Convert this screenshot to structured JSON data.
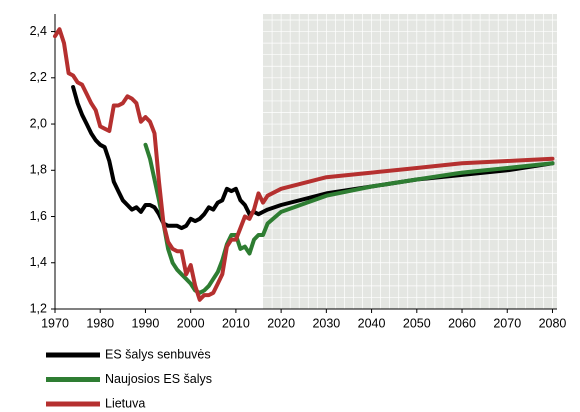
{
  "chart_data": {
    "type": "line",
    "xlim": [
      1970,
      2081
    ],
    "xticks": [
      1970,
      1980,
      1990,
      2000,
      2010,
      2020,
      2030,
      2040,
      2050,
      2060,
      2070,
      2080
    ],
    "ylim": [
      1.2,
      2.45
    ],
    "yticks": [
      {
        "value": 1.2,
        "label": "1,2"
      },
      {
        "value": 1.4,
        "label": "1,4"
      },
      {
        "value": 1.6,
        "label": "1,6"
      },
      {
        "value": 1.8,
        "label": "1,8"
      },
      {
        "value": 2.0,
        "label": "2,0"
      },
      {
        "value": 2.2,
        "label": "2,2"
      },
      {
        "value": 2.4,
        "label": "2,4"
      }
    ],
    "shaded_xlim": [
      2016,
      2081
    ],
    "legend": "bottom-left",
    "series": [
      {
        "name": "ES šalys senbuvės",
        "color": "#000000",
        "x": [
          1974,
          1975,
          1976,
          1977,
          1978,
          1979,
          1980,
          1981,
          1982,
          1983,
          1984,
          1985,
          1986,
          1987,
          1988,
          1989,
          1990,
          1991,
          1992,
          1993,
          1994,
          1995,
          1996,
          1997,
          1998,
          1999,
          2000,
          2001,
          2002,
          2003,
          2004,
          2005,
          2006,
          2007,
          2008,
          2009,
          2010,
          2011,
          2012,
          2013,
          2014,
          2015,
          2016,
          2017,
          2020,
          2030,
          2040,
          2050,
          2060,
          2070,
          2080
        ],
        "values": [
          2.16,
          2.09,
          2.04,
          2.0,
          1.96,
          1.93,
          1.91,
          1.9,
          1.84,
          1.75,
          1.71,
          1.67,
          1.65,
          1.63,
          1.64,
          1.62,
          1.65,
          1.65,
          1.64,
          1.61,
          1.57,
          1.56,
          1.56,
          1.56,
          1.55,
          1.56,
          1.59,
          1.58,
          1.59,
          1.61,
          1.64,
          1.63,
          1.66,
          1.67,
          1.72,
          1.71,
          1.72,
          1.67,
          1.65,
          1.61,
          1.62,
          1.61,
          1.62,
          1.63,
          1.65,
          1.7,
          1.73,
          1.76,
          1.78,
          1.8,
          1.83
        ]
      },
      {
        "name": "Naujosios ES šalys",
        "color": "#2e7d32",
        "x": [
          1990,
          1991,
          1992,
          1993,
          1994,
          1995,
          1996,
          1997,
          1998,
          1999,
          2000,
          2001,
          2002,
          2003,
          2004,
          2005,
          2006,
          2007,
          2008,
          2009,
          2010,
          2011,
          2012,
          2013,
          2014,
          2015,
          2016,
          2017,
          2020,
          2030,
          2040,
          2050,
          2060,
          2070,
          2080
        ],
        "values": [
          1.91,
          1.85,
          1.76,
          1.67,
          1.57,
          1.46,
          1.4,
          1.37,
          1.35,
          1.33,
          1.31,
          1.28,
          1.27,
          1.28,
          1.3,
          1.33,
          1.36,
          1.41,
          1.48,
          1.52,
          1.52,
          1.46,
          1.47,
          1.44,
          1.5,
          1.52,
          1.52,
          1.57,
          1.62,
          1.69,
          1.73,
          1.76,
          1.79,
          1.81,
          1.83
        ]
      },
      {
        "name": "Lietuva",
        "color": "#b5302f",
        "x": [
          1970,
          1971,
          1972,
          1973,
          1974,
          1975,
          1976,
          1977,
          1978,
          1979,
          1980,
          1981,
          1982,
          1983,
          1984,
          1985,
          1986,
          1987,
          1988,
          1989,
          1990,
          1991,
          1992,
          1993,
          1994,
          1995,
          1996,
          1997,
          1998,
          1999,
          2000,
          2001,
          2002,
          2003,
          2004,
          2005,
          2006,
          2007,
          2008,
          2009,
          2010,
          2011,
          2012,
          2013,
          2014,
          2015,
          2016,
          2017,
          2020,
          2030,
          2040,
          2050,
          2060,
          2070,
          2080
        ],
        "values": [
          2.38,
          2.41,
          2.35,
          2.22,
          2.21,
          2.18,
          2.17,
          2.13,
          2.09,
          2.06,
          1.99,
          1.98,
          1.97,
          2.08,
          2.08,
          2.09,
          2.12,
          2.11,
          2.09,
          2.01,
          2.03,
          2.01,
          1.96,
          1.75,
          1.57,
          1.49,
          1.46,
          1.45,
          1.45,
          1.35,
          1.39,
          1.3,
          1.24,
          1.26,
          1.26,
          1.27,
          1.31,
          1.35,
          1.47,
          1.5,
          1.5,
          1.55,
          1.6,
          1.59,
          1.63,
          1.7,
          1.66,
          1.69,
          1.72,
          1.77,
          1.79,
          1.81,
          1.83,
          1.84,
          1.85
        ]
      }
    ]
  }
}
